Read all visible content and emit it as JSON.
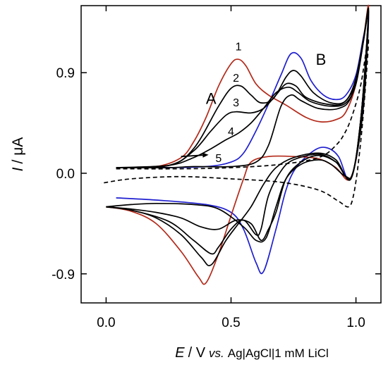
{
  "chart_data": {
    "type": "line",
    "title": "",
    "xlabel": {
      "var": "E",
      "unit": "/ V",
      "qualifier": "vs.",
      "reference": "Ag|AgCl|1 mM LiCl"
    },
    "ylabel": {
      "var": "I",
      "unit": "/ μA"
    },
    "xlim": [
      -0.1,
      1.1
    ],
    "ylim": [
      -1.16,
      1.5
    ],
    "grid": false,
    "xticks": [
      {
        "v": 0.0,
        "label": "0.0"
      },
      {
        "v": 0.5,
        "label": "0.5"
      },
      {
        "v": 1.0,
        "label": "1.0"
      }
    ],
    "yticks": [
      {
        "v": 0.9,
        "label": "0.9"
      },
      {
        "v": 0.0,
        "label": "0.0"
      },
      {
        "v": -0.9,
        "label": "-0.9"
      }
    ],
    "peak_labels": [
      {
        "text": "A",
        "x": 0.42,
        "y": 0.62
      },
      {
        "text": "B",
        "x": 0.86,
        "y": 0.97
      }
    ],
    "curve_labels": [
      {
        "text": "1",
        "x": 0.53,
        "y": 1.1
      },
      {
        "text": "2",
        "x": 0.52,
        "y": 0.82
      },
      {
        "text": "3",
        "x": 0.52,
        "y": 0.6
      },
      {
        "text": "4",
        "x": 0.5,
        "y": 0.34
      },
      {
        "text": "5",
        "x": 0.45,
        "y": 0.1
      }
    ],
    "arrow": {
      "from": [
        0.3,
        0.15
      ],
      "to": [
        0.41,
        0.165
      ]
    },
    "series": [
      {
        "color": "#1f1fd0",
        "dash": false,
        "points": [
          [
            0.04,
            0.05
          ],
          [
            0.2,
            0.05
          ],
          [
            0.4,
            0.06
          ],
          [
            0.5,
            0.1
          ],
          [
            0.55,
            0.18
          ],
          [
            0.6,
            0.38
          ],
          [
            0.65,
            0.62
          ],
          [
            0.7,
            0.88
          ],
          [
            0.74,
            1.07
          ],
          [
            0.78,
            1.03
          ],
          [
            0.82,
            0.83
          ],
          [
            0.87,
            0.7
          ],
          [
            0.92,
            0.66
          ],
          [
            0.96,
            0.7
          ],
          [
            1.0,
            0.88
          ],
          [
            1.03,
            1.22
          ],
          [
            1.05,
            1.42
          ],
          [
            1.04,
            0.95
          ],
          [
            1.02,
            0.45
          ],
          [
            1.0,
            0.12
          ],
          [
            0.97,
            -0.06
          ],
          [
            0.93,
            0.15
          ],
          [
            0.88,
            0.23
          ],
          [
            0.83,
            0.2
          ],
          [
            0.76,
            0.05
          ],
          [
            0.72,
            -0.15
          ],
          [
            0.68,
            -0.5
          ],
          [
            0.63,
            -0.88
          ],
          [
            0.6,
            -0.8
          ],
          [
            0.55,
            -0.5
          ],
          [
            0.5,
            -0.35
          ],
          [
            0.4,
            -0.28
          ],
          [
            0.2,
            -0.24
          ],
          [
            0.04,
            -0.22
          ]
        ]
      },
      {
        "color": "#b32a1a",
        "dash": false,
        "points": [
          [
            0.04,
            0.05
          ],
          [
            0.2,
            0.06
          ],
          [
            0.3,
            0.14
          ],
          [
            0.35,
            0.28
          ],
          [
            0.4,
            0.5
          ],
          [
            0.45,
            0.78
          ],
          [
            0.5,
            0.98
          ],
          [
            0.53,
            1.02
          ],
          [
            0.56,
            0.96
          ],
          [
            0.6,
            0.8
          ],
          [
            0.65,
            0.7
          ],
          [
            0.72,
            0.61
          ],
          [
            0.8,
            0.5
          ],
          [
            0.86,
            0.46
          ],
          [
            0.92,
            0.48
          ],
          [
            0.96,
            0.55
          ],
          [
            1.0,
            0.8
          ],
          [
            1.03,
            1.2
          ],
          [
            1.05,
            1.5
          ],
          [
            1.04,
            1.0
          ],
          [
            1.02,
            0.5
          ],
          [
            1.0,
            0.12
          ],
          [
            0.97,
            -0.06
          ],
          [
            0.92,
            0.05
          ],
          [
            0.85,
            0.13
          ],
          [
            0.75,
            0.15
          ],
          [
            0.65,
            0.15
          ],
          [
            0.58,
            0.1
          ],
          [
            0.55,
            -0.05
          ],
          [
            0.5,
            -0.38
          ],
          [
            0.45,
            -0.72
          ],
          [
            0.4,
            -0.98
          ],
          [
            0.37,
            -0.93
          ],
          [
            0.3,
            -0.7
          ],
          [
            0.2,
            -0.45
          ],
          [
            0.1,
            -0.34
          ],
          [
            0.0,
            -0.3
          ]
        ]
      },
      {
        "color": "#000000",
        "dash": false,
        "points": [
          [
            0.04,
            0.05
          ],
          [
            0.25,
            0.07
          ],
          [
            0.35,
            0.22
          ],
          [
            0.45,
            0.6
          ],
          [
            0.5,
            0.76
          ],
          [
            0.54,
            0.78
          ],
          [
            0.58,
            0.7
          ],
          [
            0.62,
            0.63
          ],
          [
            0.67,
            0.67
          ],
          [
            0.72,
            0.86
          ],
          [
            0.75,
            0.92
          ],
          [
            0.78,
            0.87
          ],
          [
            0.83,
            0.72
          ],
          [
            0.9,
            0.63
          ],
          [
            0.96,
            0.65
          ],
          [
            1.0,
            0.85
          ],
          [
            1.03,
            1.2
          ],
          [
            1.05,
            1.45
          ],
          [
            1.02,
            0.5
          ],
          [
            0.98,
            -0.05
          ],
          [
            0.92,
            0.12
          ],
          [
            0.85,
            0.18
          ],
          [
            0.75,
            0.14
          ],
          [
            0.68,
            0.05
          ],
          [
            0.63,
            -0.1
          ],
          [
            0.58,
            -0.3
          ],
          [
            0.53,
            -0.45
          ],
          [
            0.48,
            -0.6
          ],
          [
            0.42,
            -0.82
          ],
          [
            0.38,
            -0.75
          ],
          [
            0.3,
            -0.55
          ],
          [
            0.2,
            -0.4
          ],
          [
            0.1,
            -0.33
          ],
          [
            0.0,
            -0.3
          ]
        ]
      },
      {
        "color": "#000000",
        "dash": false,
        "points": [
          [
            0.04,
            0.05
          ],
          [
            0.25,
            0.07
          ],
          [
            0.35,
            0.2
          ],
          [
            0.42,
            0.38
          ],
          [
            0.48,
            0.52
          ],
          [
            0.52,
            0.55
          ],
          [
            0.58,
            0.54
          ],
          [
            0.63,
            0.58
          ],
          [
            0.68,
            0.7
          ],
          [
            0.72,
            0.8
          ],
          [
            0.76,
            0.78
          ],
          [
            0.8,
            0.68
          ],
          [
            0.88,
            0.62
          ],
          [
            0.95,
            0.63
          ],
          [
            1.0,
            0.82
          ],
          [
            1.03,
            1.2
          ],
          [
            1.05,
            1.43
          ],
          [
            1.02,
            0.5
          ],
          [
            0.98,
            -0.04
          ],
          [
            0.92,
            0.1
          ],
          [
            0.85,
            0.17
          ],
          [
            0.75,
            0.12
          ],
          [
            0.7,
            0.02
          ],
          [
            0.65,
            -0.2
          ],
          [
            0.62,
            -0.5
          ],
          [
            0.6,
            -0.55
          ],
          [
            0.55,
            -0.42
          ],
          [
            0.5,
            -0.5
          ],
          [
            0.45,
            -0.66
          ],
          [
            0.42,
            -0.72
          ],
          [
            0.35,
            -0.6
          ],
          [
            0.25,
            -0.43
          ],
          [
            0.1,
            -0.33
          ],
          [
            0.0,
            -0.3
          ]
        ]
      },
      {
        "color": "#000000",
        "dash": false,
        "points": [
          [
            0.04,
            0.05
          ],
          [
            0.25,
            0.07
          ],
          [
            0.35,
            0.14
          ],
          [
            0.42,
            0.22
          ],
          [
            0.48,
            0.3
          ],
          [
            0.53,
            0.36
          ],
          [
            0.58,
            0.45
          ],
          [
            0.63,
            0.58
          ],
          [
            0.68,
            0.72
          ],
          [
            0.73,
            0.77
          ],
          [
            0.77,
            0.72
          ],
          [
            0.82,
            0.64
          ],
          [
            0.9,
            0.6
          ],
          [
            0.96,
            0.63
          ],
          [
            1.0,
            0.8
          ],
          [
            1.03,
            1.18
          ],
          [
            1.05,
            1.43
          ],
          [
            1.02,
            0.5
          ],
          [
            0.98,
            -0.04
          ],
          [
            0.92,
            0.1
          ],
          [
            0.85,
            0.16
          ],
          [
            0.78,
            0.1
          ],
          [
            0.72,
            -0.05
          ],
          [
            0.68,
            -0.35
          ],
          [
            0.65,
            -0.5
          ],
          [
            0.62,
            -0.6
          ],
          [
            0.58,
            -0.45
          ],
          [
            0.52,
            -0.42
          ],
          [
            0.45,
            -0.5
          ],
          [
            0.38,
            -0.48
          ],
          [
            0.3,
            -0.4
          ],
          [
            0.2,
            -0.35
          ],
          [
            0.1,
            -0.32
          ],
          [
            0.0,
            -0.3
          ]
        ]
      },
      {
        "color": "#000000",
        "dash": false,
        "points": [
          [
            0.04,
            0.05
          ],
          [
            0.25,
            0.05
          ],
          [
            0.35,
            0.06
          ],
          [
            0.5,
            0.06
          ],
          [
            0.6,
            0.1
          ],
          [
            0.65,
            0.25
          ],
          [
            0.7,
            0.6
          ],
          [
            0.74,
            0.7
          ],
          [
            0.78,
            0.65
          ],
          [
            0.85,
            0.58
          ],
          [
            0.93,
            0.58
          ],
          [
            0.98,
            0.68
          ],
          [
            1.02,
            1.05
          ],
          [
            1.05,
            1.45
          ],
          [
            1.03,
            0.6
          ],
          [
            0.99,
            0.02
          ],
          [
            0.96,
            -0.03
          ],
          [
            0.9,
            0.08
          ],
          [
            0.85,
            0.12
          ],
          [
            0.78,
            0.08
          ],
          [
            0.72,
            -0.05
          ],
          [
            0.68,
            -0.3
          ],
          [
            0.64,
            -0.58
          ],
          [
            0.6,
            -0.6
          ],
          [
            0.55,
            -0.48
          ],
          [
            0.45,
            -0.32
          ],
          [
            0.35,
            -0.28
          ],
          [
            0.2,
            -0.27
          ],
          [
            0.1,
            -0.28
          ],
          [
            0.0,
            -0.3
          ]
        ]
      },
      {
        "color": "#000000",
        "dash": true,
        "points": [
          [
            0.04,
            0.04
          ],
          [
            0.3,
            0.04
          ],
          [
            0.5,
            0.05
          ],
          [
            0.7,
            0.08
          ],
          [
            0.85,
            0.14
          ],
          [
            0.92,
            0.25
          ],
          [
            0.96,
            0.38
          ],
          [
            0.99,
            0.55
          ],
          [
            1.02,
            0.8
          ],
          [
            1.05,
            1.2
          ],
          [
            1.03,
            0.55
          ],
          [
            1.01,
            0.1
          ],
          [
            0.99,
            -0.2
          ],
          [
            0.97,
            -0.3
          ],
          [
            0.93,
            -0.25
          ],
          [
            0.85,
            -0.15
          ],
          [
            0.7,
            -0.08
          ],
          [
            0.5,
            -0.05
          ],
          [
            0.3,
            -0.03
          ],
          [
            0.1,
            -0.05
          ],
          [
            -0.02,
            -0.09
          ]
        ]
      }
    ]
  }
}
